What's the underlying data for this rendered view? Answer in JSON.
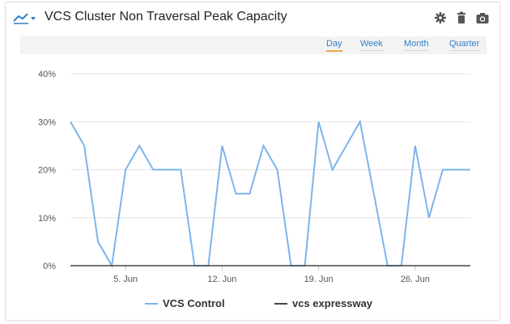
{
  "widget": {
    "title": "VCS Cluster Non Traversal Peak Capacity",
    "menu_icon": "line-chart-icon",
    "actions": [
      {
        "name": "settings-icon",
        "glyph": "gear"
      },
      {
        "name": "delete-icon",
        "glyph": "trash"
      },
      {
        "name": "camera-icon",
        "glyph": "camera"
      }
    ]
  },
  "range_selector": {
    "options": [
      "Day",
      "Week",
      "Month",
      "Quarter"
    ],
    "active": "Day"
  },
  "colors": {
    "accent": "#2f7fc9",
    "active_underline": "#f0a64a",
    "series_1": "#7cb5ec",
    "series_2": "#434348"
  },
  "chart_data": {
    "type": "line",
    "x_tick_labels": [
      "5. Jun",
      "12. Jun",
      "19. Jun",
      "26. Jun"
    ],
    "x_tick_dates": [
      "2023-06-05",
      "2023-06-12",
      "2023-06-19",
      "2023-06-26"
    ],
    "x": [
      "2023-06-01",
      "2023-06-02",
      "2023-06-03",
      "2023-06-04",
      "2023-06-05",
      "2023-06-06",
      "2023-06-07",
      "2023-06-08",
      "2023-06-09",
      "2023-06-10",
      "2023-06-11",
      "2023-06-12",
      "2023-06-13",
      "2023-06-14",
      "2023-06-15",
      "2023-06-16",
      "2023-06-17",
      "2023-06-18",
      "2023-06-19",
      "2023-06-20",
      "2023-06-21",
      "2023-06-22",
      "2023-06-23",
      "2023-06-24",
      "2023-06-25",
      "2023-06-26",
      "2023-06-27",
      "2023-06-28",
      "2023-06-29",
      "2023-06-30"
    ],
    "y_ticks": [
      "0%",
      "10%",
      "20%",
      "30%",
      "40%"
    ],
    "ylim": [
      0,
      40
    ],
    "series": [
      {
        "name": "VCS Control",
        "values": [
          30,
          25,
          5,
          0,
          20,
          25,
          20,
          20,
          20,
          0,
          0,
          25,
          15,
          15,
          25,
          20,
          0,
          0,
          30,
          20,
          25,
          30,
          15,
          0,
          0,
          25,
          10,
          20,
          20,
          20
        ]
      },
      {
        "name": "vcs expressway",
        "values": [
          0,
          0,
          0,
          0,
          0,
          0,
          0,
          0,
          0,
          0,
          0,
          0,
          0,
          0,
          0,
          0,
          0,
          0,
          0,
          0,
          0,
          0,
          0,
          0,
          0,
          0,
          0,
          0,
          0,
          0
        ]
      }
    ],
    "grid": true,
    "legend": "bottom-center"
  }
}
